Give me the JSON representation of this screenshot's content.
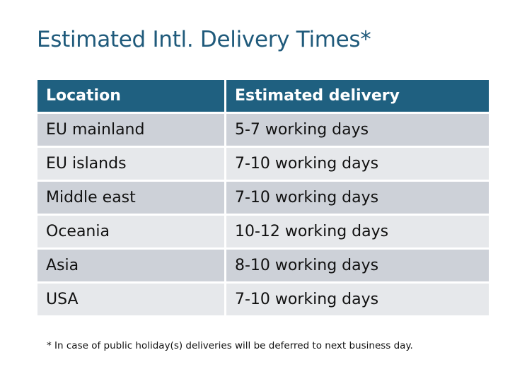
{
  "title": "Estimated Intl. Delivery Times*",
  "table": {
    "headers": [
      "Location",
      "Estimated delivery"
    ],
    "rows": [
      [
        "EU mainland",
        "5-7 working days"
      ],
      [
        "EU islands",
        "7-10 working days"
      ],
      [
        "Middle east",
        "7-10 working days"
      ],
      [
        "Oceania",
        "10-12 working days"
      ],
      [
        "Asia",
        "8-10 working days"
      ],
      [
        "USA",
        "7-10 working days"
      ]
    ]
  },
  "footnote": "* In case of public holiday(s) deliveries will be deferred to next business day.",
  "colors": {
    "header": "#1f6080",
    "title": "#1f5a7b",
    "row_odd": "#cdd1d8",
    "row_even": "#e6e8eb"
  }
}
